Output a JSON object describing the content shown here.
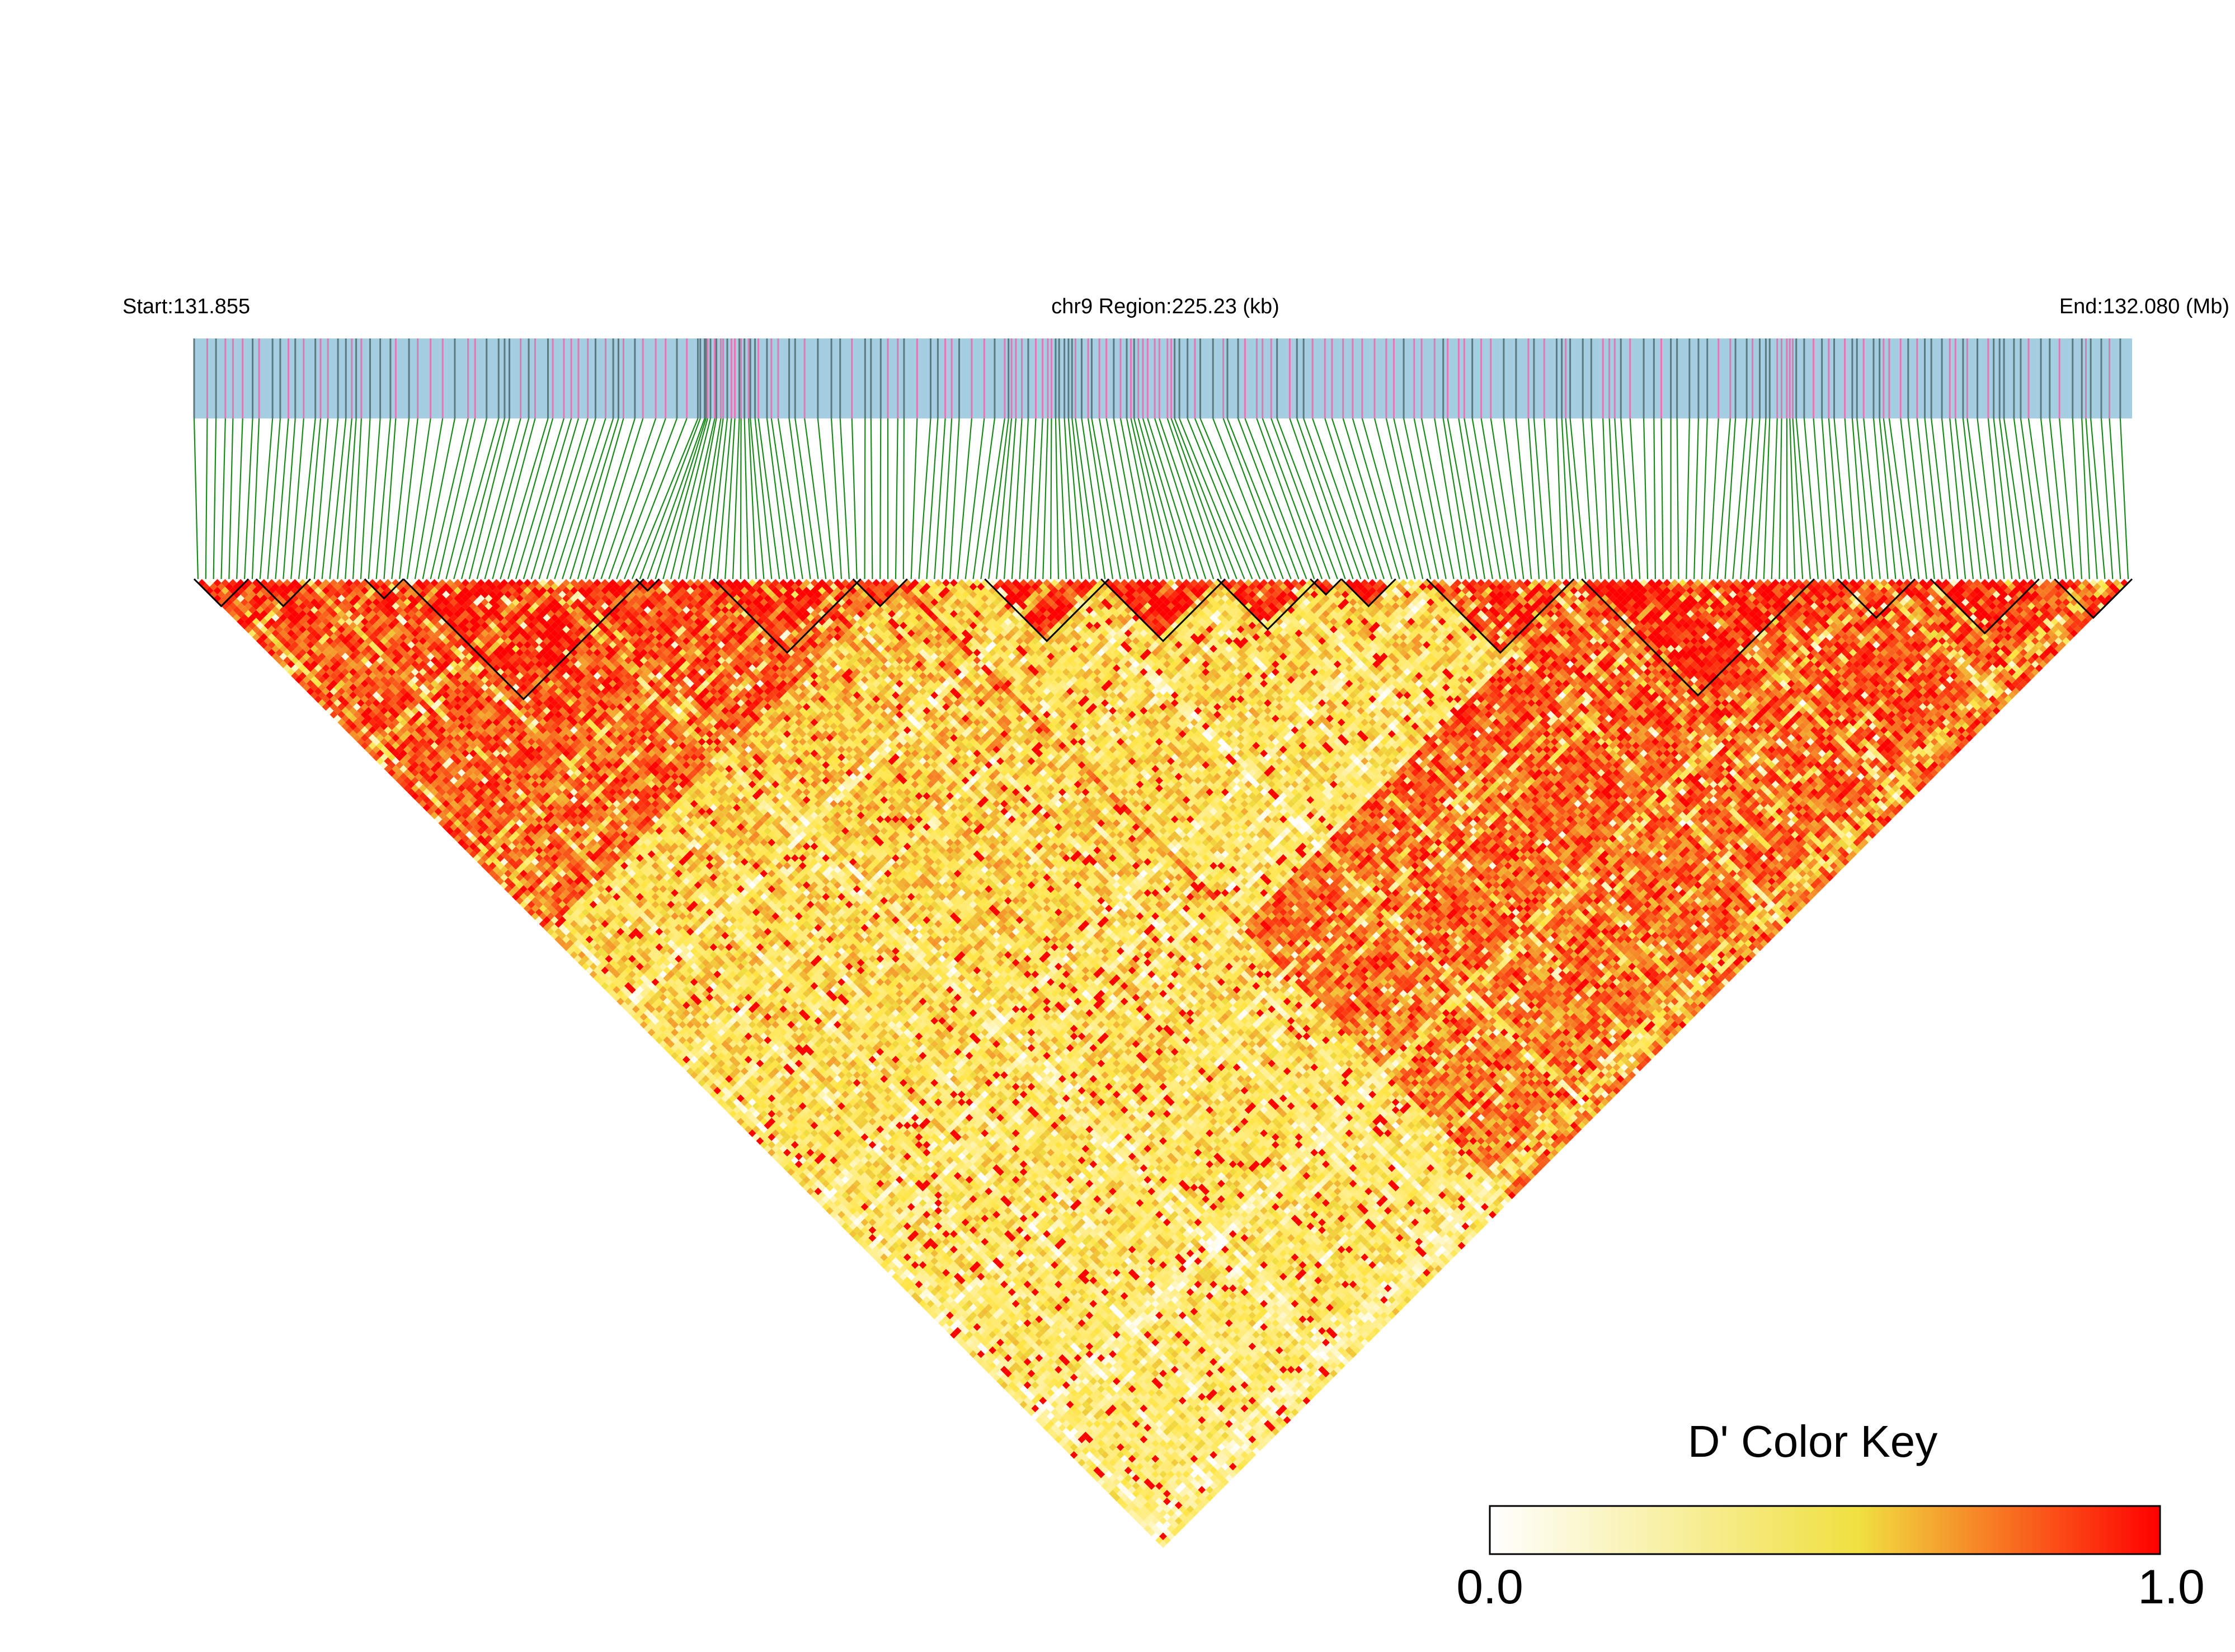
{
  "chart_data": {
    "type": "heatmap",
    "title": "",
    "header": {
      "start_label": "Start:131.855",
      "region_label": "chr9 Region:225.23 (kb)",
      "end_label": "End:132.080 (Mb)"
    },
    "chromosome": "chr9",
    "region_start_mb": 131.855,
    "region_end_mb": 132.08,
    "region_length_kb": 225.23,
    "marker_count": 250,
    "measure": "D'",
    "triangle_orientation": "downward",
    "value_range": [
      0.0,
      1.0
    ],
    "color_key": {
      "title": "D' Color Key",
      "min_label": "0.0",
      "max_label": "1.0",
      "colors": [
        "#ffffff",
        "#f0e040",
        "#ff0000"
      ]
    },
    "colors": {
      "track_fill": "#a6cee3",
      "track_tick_gray": "#5a7a80",
      "track_tick_pink": "#e377b3",
      "connector_green": "#1a8a1a",
      "block_outline": "#000000"
    },
    "ld_blocks_marker_ranges": [
      [
        1,
        7
      ],
      [
        9,
        15
      ],
      [
        23,
        27
      ],
      [
        28,
        58
      ],
      [
        58,
        60
      ],
      [
        68,
        86
      ],
      [
        86,
        92
      ],
      [
        103,
        118
      ],
      [
        118,
        133
      ],
      [
        133,
        145
      ],
      [
        145,
        148
      ],
      [
        149,
        155
      ],
      [
        160,
        178
      ],
      [
        180,
        209
      ],
      [
        213,
        222
      ],
      [
        225,
        238
      ],
      [
        241,
        250
      ]
    ]
  }
}
